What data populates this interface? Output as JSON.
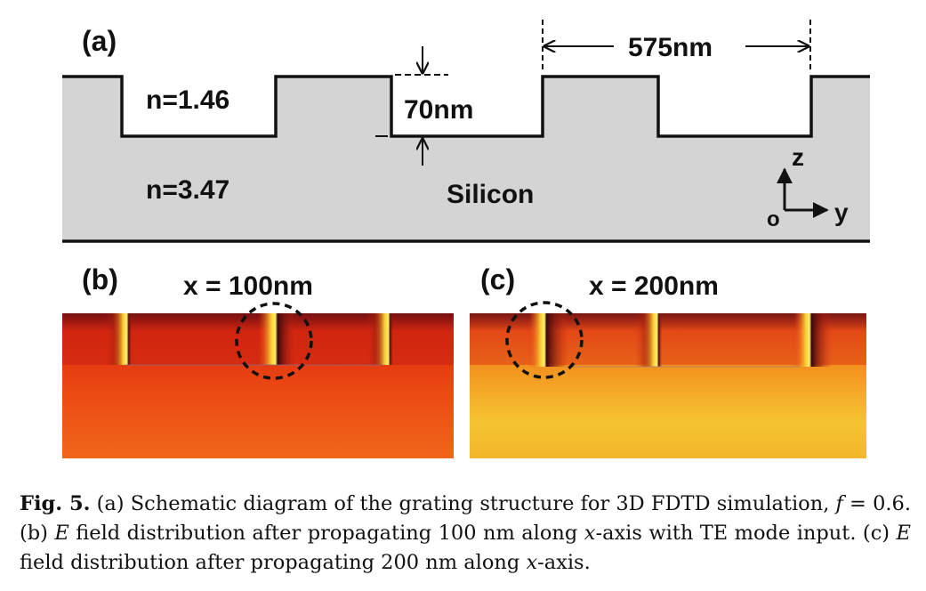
{
  "panel_a": {
    "label": "(a)",
    "period_label": "575nm",
    "depth_label": "70nm",
    "oxide_index": "n=1.46",
    "silicon_index": "n=3.47",
    "material": "Silicon",
    "axis_z": "z",
    "axis_y": "y",
    "axis_origin": "o"
  },
  "panel_b": {
    "label": "(b)",
    "position_label": "x = 100nm"
  },
  "panel_c": {
    "label": "(c)",
    "position_label": "x = 200nm"
  },
  "caption": {
    "fig_label": "Fig. 5.",
    "part1": " (a) Schematic diagram of the grating structure for 3D FDTD simulation, ",
    "f_symbol": "f",
    "part2": " = 0.6. (b) ",
    "e_symbol_1": "E",
    "part3": " field distribution after propagating 100 nm along ",
    "x_symbol_1": "x",
    "part4": "-axis with TE mode input. (c) ",
    "e_symbol_2": "E",
    "part5": " field distribution after propagating 200 nm along ",
    "x_symbol_2": "x",
    "part6": "-axis."
  },
  "colors": {
    "silicon_fill": "#d4d4d4",
    "field_dark": "#6a0f14",
    "field_red": "#e02d12",
    "field_orange": "#f47a16",
    "field_yellow": "#f6dc3a"
  }
}
